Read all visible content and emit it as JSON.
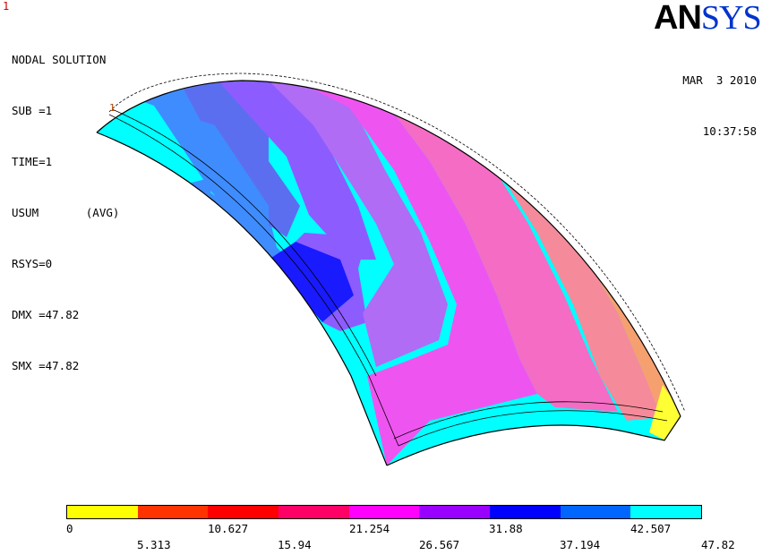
{
  "window_number": "1",
  "info": {
    "title": "NODAL SOLUTION",
    "lines": [
      "SUB =1",
      "TIME=1",
      "USUM       (AVG)",
      "RSYS=0",
      "DMX =47.82",
      "SMX =47.82"
    ]
  },
  "logo": {
    "part1": "AN",
    "part2": "SYS"
  },
  "date": "MAR  3 2010",
  "time": "10:37:58",
  "node_marker": "1",
  "legend": {
    "colors": [
      "#ffff00",
      "#ff3300",
      "#ff0000",
      "#ff0066",
      "#ff00ff",
      "#9900ff",
      "#0000ff",
      "#0066ff",
      "#00ffff"
    ],
    "top_labels": [
      "0",
      "10.627",
      "21.254",
      "31.88",
      "42.507"
    ],
    "bottom_labels": [
      "5.313",
      "15.94",
      "26.567",
      "37.194",
      "47.82"
    ]
  },
  "model_colors": {
    "cyan": "#00ffff",
    "light_blue": "#3f8cff",
    "mid_blue": "#5c6ef0",
    "blue": "#1a1aff",
    "violet": "#8c5cff",
    "purple": "#b06cf5",
    "magenta": "#ee55f0",
    "pink": "#f56cc4",
    "salmon": "#f58a9a",
    "orange": "#f6a070",
    "yellow": "#ffff33"
  }
}
